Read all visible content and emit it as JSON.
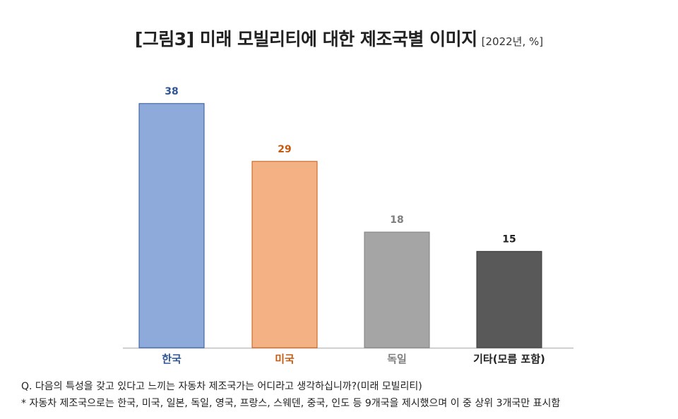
{
  "chart_data": {
    "type": "bar",
    "title": "[그림3] 미래 모빌리티에 대한 제조국별 이미지",
    "subtitle": "[2022년, %]",
    "categories": [
      "한국",
      "미국",
      "독일",
      "기타(모름 포함)"
    ],
    "values": [
      38,
      29,
      18,
      15
    ],
    "bar_colors": [
      "#8eaadb",
      "#f4b183",
      "#a5a5a5",
      "#595959"
    ],
    "bar_border_colors": [
      "#2f5597",
      "#c55a11",
      "#7f7f7f",
      "#3a3a3a"
    ],
    "label_colors": [
      "#2f5597",
      "#c55a11",
      "#7f7f7f",
      "#222222"
    ],
    "ylim": [
      0,
      45
    ],
    "grid": false,
    "xlabel": "",
    "ylabel": ""
  },
  "notes": {
    "question": "Q. 다음의 특성을 갖고 있다고 느끼는 자동차 제조국가는 어디라고 생각하십니까?(미래 모빌리티)",
    "footnote": "* 자동차 제조국으로는 한국, 미국, 일본, 독일, 영국, 프랑스, 스웨덴, 중국, 인도 등 9개국을 제시했으며 이 중 상위 3개국만 표시함"
  }
}
